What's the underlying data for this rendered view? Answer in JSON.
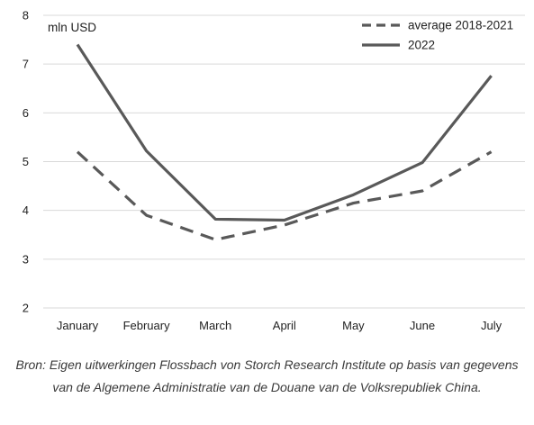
{
  "chart_data": {
    "type": "line",
    "categories": [
      "January",
      "February",
      "March",
      "April",
      "May",
      "June",
      "July"
    ],
    "series": [
      {
        "name": "average 2018-2021",
        "values": [
          5.2,
          3.9,
          3.4,
          3.7,
          4.15,
          4.4,
          5.2
        ],
        "style": "dashed",
        "color": "#595959"
      },
      {
        "name": "2022",
        "values": [
          7.4,
          5.22,
          3.82,
          3.8,
          4.32,
          4.98,
          6.76
        ],
        "style": "solid",
        "color": "#595959"
      }
    ],
    "title": "",
    "xlabel": "",
    "ylabel": "mln USD",
    "ylim": [
      2,
      8
    ],
    "yticks": [
      "2",
      "3",
      "4",
      "5",
      "6",
      "7",
      "8"
    ],
    "grid": true,
    "gridlines": "horizontal",
    "legend_placement": "top-right"
  },
  "caption": "Bron: Eigen uitwerkingen Flossbach von Storch Research Institute op basis van gegevens van de Algemene Administratie van de Douane van de Volksrepubliek China."
}
